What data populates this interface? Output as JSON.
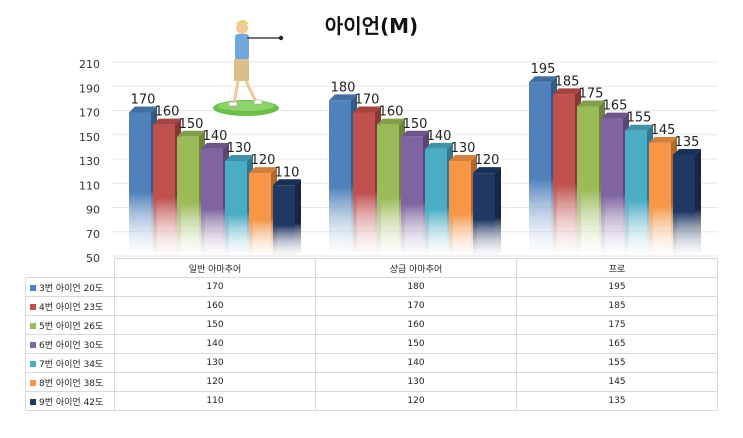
{
  "chart_data": {
    "type": "bar",
    "title": "아이언(M)",
    "categories": [
      "일반 아마추어",
      "상급 아마추어",
      "프로"
    ],
    "series": [
      {
        "name": "3번 아이언 20도",
        "color": "#4f81bd",
        "values": [
          170,
          180,
          195
        ]
      },
      {
        "name": "4번 아이언 23도",
        "color": "#c0504d",
        "values": [
          160,
          170,
          185
        ]
      },
      {
        "name": "5번 아이언 26도",
        "color": "#9bbb59",
        "values": [
          150,
          160,
          175
        ]
      },
      {
        "name": "6번 아이언 30도",
        "color": "#8064a2",
        "values": [
          140,
          150,
          165
        ]
      },
      {
        "name": "7번 아이언 34도",
        "color": "#4bacc6",
        "values": [
          130,
          140,
          155
        ]
      },
      {
        "name": "8번 아이언 38도",
        "color": "#f79646",
        "values": [
          120,
          130,
          145
        ]
      },
      {
        "name": "9번 아이언 42도",
        "color": "#1f3864",
        "values": [
          110,
          120,
          135
        ]
      }
    ],
    "ylim": [
      50,
      210
    ],
    "yticks": [
      50,
      70,
      90,
      110,
      130,
      150,
      170,
      190,
      210
    ],
    "grid": true,
    "legend": "data-table"
  }
}
